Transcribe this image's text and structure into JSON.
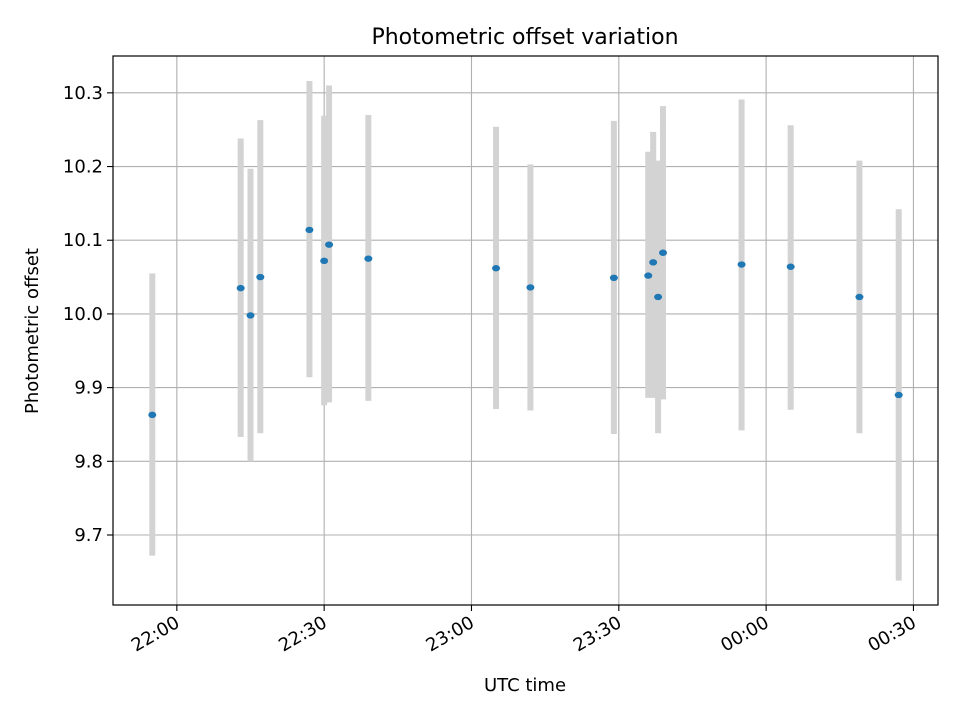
{
  "chart_data": {
    "type": "scatter",
    "title": "Photometric offset variation",
    "xlabel": "UTC time",
    "ylabel": "Photometric offset",
    "x_is_time": true,
    "xlim": [
      "21:47",
      "00:35"
    ],
    "ylim": [
      9.605,
      10.35
    ],
    "grid": true,
    "xticks": [
      "22:00",
      "22:30",
      "23:00",
      "23:30",
      "00:00",
      "00:30"
    ],
    "yticks": [
      9.7,
      9.8,
      9.9,
      10.0,
      10.1,
      10.2,
      10.3
    ],
    "point_color": "#1f77b4",
    "errorbar_color": "#d3d3d3",
    "points": [
      {
        "x": "21:55",
        "y": 9.863,
        "ylow": 9.672,
        "yhigh": 10.055
      },
      {
        "x": "22:13",
        "y": 10.035,
        "ylow": 9.833,
        "yhigh": 10.238
      },
      {
        "x": "22:15",
        "y": 9.998,
        "ylow": 9.8,
        "yhigh": 10.197
      },
      {
        "x": "22:17",
        "y": 10.05,
        "ylow": 9.838,
        "yhigh": 10.263
      },
      {
        "x": "22:27",
        "y": 10.114,
        "ylow": 9.914,
        "yhigh": 10.316
      },
      {
        "x": "22:30",
        "y": 10.072,
        "ylow": 9.876,
        "yhigh": 10.269
      },
      {
        "x": "22:31",
        "y": 10.094,
        "ylow": 9.88,
        "yhigh": 10.31
      },
      {
        "x": "22:39",
        "y": 10.075,
        "ylow": 9.882,
        "yhigh": 10.27
      },
      {
        "x": "23:05",
        "y": 10.062,
        "ylow": 9.871,
        "yhigh": 10.254
      },
      {
        "x": "23:12",
        "y": 10.036,
        "ylow": 9.869,
        "yhigh": 10.203
      },
      {
        "x": "23:29",
        "y": 10.049,
        "ylow": 9.837,
        "yhigh": 10.262
      },
      {
        "x": "23:36",
        "y": 10.052,
        "ylow": 9.886,
        "yhigh": 10.22
      },
      {
        "x": "23:37",
        "y": 10.07,
        "ylow": 9.886,
        "yhigh": 10.247
      },
      {
        "x": "23:38",
        "y": 10.023,
        "ylow": 9.838,
        "yhigh": 10.208
      },
      {
        "x": "23:39",
        "y": 10.083,
        "ylow": 9.884,
        "yhigh": 10.282
      },
      {
        "x": "23:55",
        "y": 10.067,
        "ylow": 9.842,
        "yhigh": 10.291
      },
      {
        "x": "00:05",
        "y": 10.064,
        "ylow": 9.87,
        "yhigh": 10.256
      },
      {
        "x": "00:19",
        "y": 10.023,
        "ylow": 9.838,
        "yhigh": 10.208
      },
      {
        "x": "00:27",
        "y": 9.89,
        "ylow": 9.638,
        "yhigh": 10.142
      }
    ]
  }
}
